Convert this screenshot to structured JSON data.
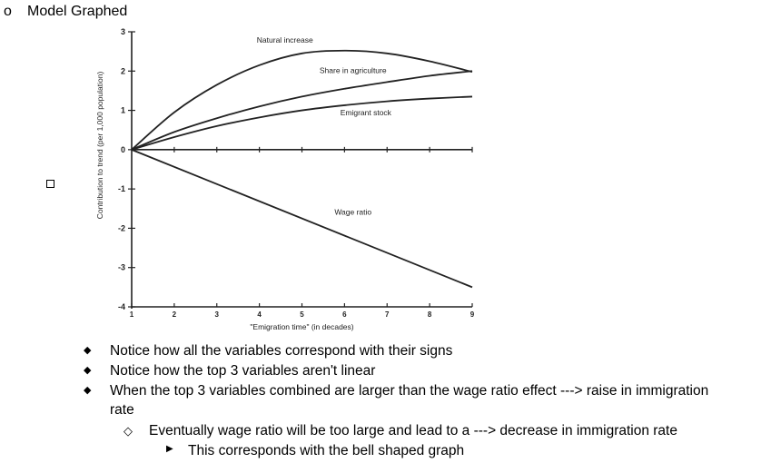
{
  "heading": {
    "bullet": "o",
    "text": "Model Graphed"
  },
  "chart_data": {
    "type": "line",
    "ylabel": "Contribution to trend (per 1,000 population)",
    "xlabel": "\"Emigration time\" (in decades)",
    "xlim": [
      1,
      9
    ],
    "ylim": [
      -4,
      3
    ],
    "xticks": [
      1,
      2,
      3,
      4,
      5,
      6,
      7,
      8,
      9
    ],
    "yticks": [
      3,
      2,
      1,
      0,
      -1,
      -2,
      -3,
      -4
    ],
    "grid": false,
    "series": [
      {
        "name": "Natural increase",
        "x": [
          1,
          2,
          3,
          4,
          5,
          6,
          7,
          8,
          9
        ],
        "y": [
          0,
          0.95,
          1.65,
          2.15,
          2.45,
          2.52,
          2.45,
          2.25,
          1.98
        ]
      },
      {
        "name": "Share in agriculture",
        "x": [
          1,
          2,
          3,
          4,
          5,
          6,
          7,
          8,
          9
        ],
        "y": [
          0,
          0.45,
          0.8,
          1.1,
          1.35,
          1.55,
          1.72,
          1.88,
          2.0
        ]
      },
      {
        "name": "Emigrant stock",
        "x": [
          1,
          2,
          3,
          4,
          5,
          6,
          7,
          8,
          9
        ],
        "y": [
          0,
          0.32,
          0.6,
          0.82,
          1.0,
          1.13,
          1.23,
          1.3,
          1.35
        ]
      },
      {
        "name": "Wage ratio",
        "x": [
          1,
          9
        ],
        "y": [
          0,
          -3.5
        ]
      }
    ]
  },
  "notes": [
    {
      "level": 1,
      "text": "Notice how all the variables correspond with their signs"
    },
    {
      "level": 1,
      "text": "Notice how the top 3 variables aren't linear"
    },
    {
      "level": 1,
      "text": "When the top 3 variables combined are larger than the wage ratio effect ---> raise in immigration"
    },
    {
      "level": 1,
      "text": "rate"
    },
    {
      "level": 2,
      "text": "Eventually wage ratio will be too large and lead to a ---> decrease in immigration rate"
    },
    {
      "level": 3,
      "text": "This corresponds with the bell shaped graph"
    }
  ]
}
